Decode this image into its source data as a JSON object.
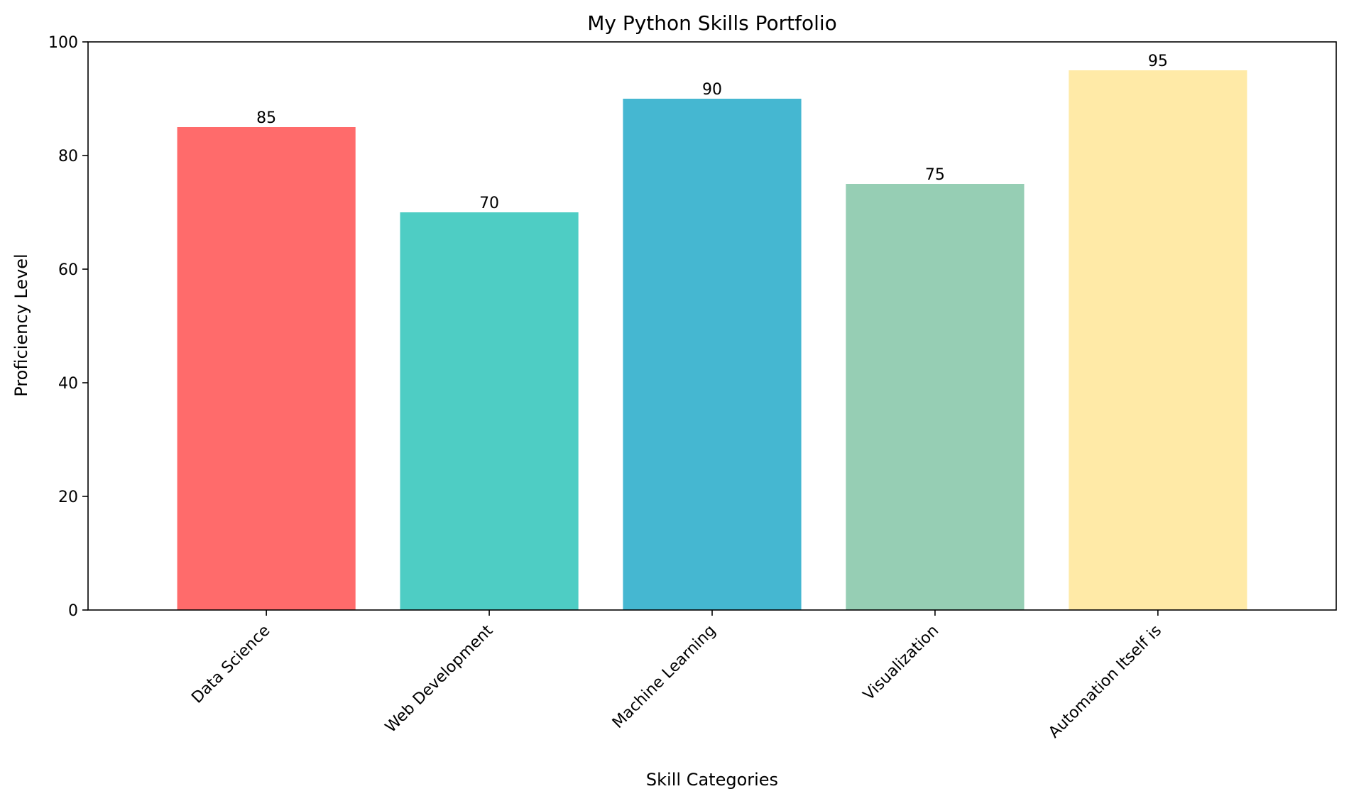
{
  "chart_data": {
    "type": "bar",
    "title": "My Python Skills Portfolio",
    "xlabel": "Skill Categories",
    "ylabel": "Proficiency Level",
    "ylim": [
      0,
      100
    ],
    "yticks": [
      0,
      20,
      40,
      60,
      80,
      100
    ],
    "categories": [
      "Data Science",
      "Web Development",
      "Machine Learning",
      "Visualization",
      "Automation Itself is"
    ],
    "values": [
      85,
      70,
      90,
      75,
      95
    ],
    "colors": [
      "#FF6B6B",
      "#4ECDC4",
      "#45B7D1",
      "#96CEB4",
      "#FFEAA7"
    ],
    "grid": false,
    "legend": "none"
  }
}
